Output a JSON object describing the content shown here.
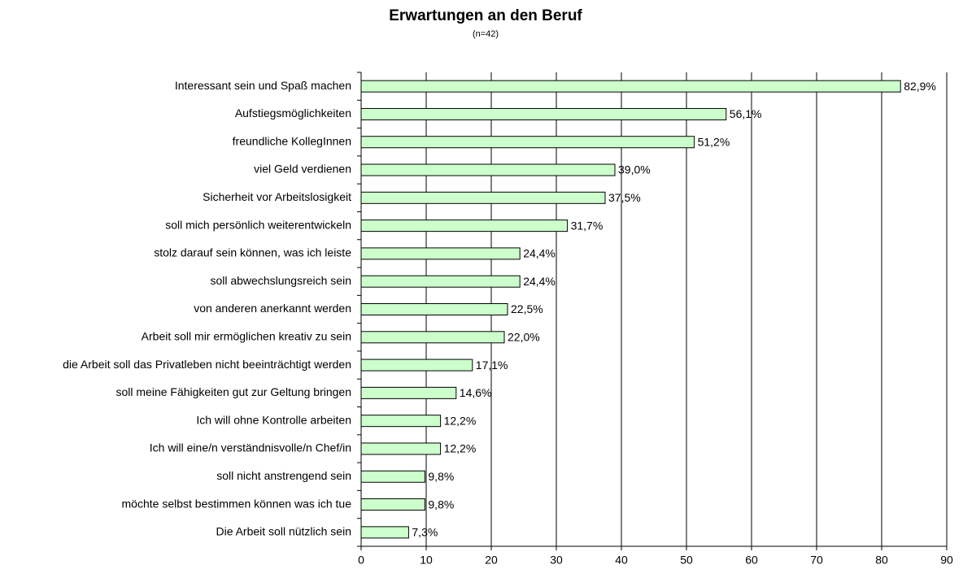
{
  "chart_data": {
    "type": "barh",
    "title": "Erwartungen an den Beruf",
    "subtitle": "(n=42)",
    "categories": [
      "Interessant sein und Spaß machen",
      "Aufstiegsmöglichkeiten",
      "freundliche KollegInnen",
      "viel Geld verdienen",
      "Sicherheit vor Arbeitslosigkeit",
      "soll mich persönlich weiterentwickeln",
      "stolz darauf sein können, was ich leiste",
      "soll abwechslungsreich sein",
      "von anderen anerkannt werden",
      "Arbeit soll mir ermöglichen kreativ zu sein",
      "die Arbeit soll das Privatleben nicht beeinträchtigt werden",
      "soll meine Fähigkeiten gut zur Geltung bringen",
      "Ich will ohne Kontrolle arbeiten",
      "Ich will eine/n verständnisvolle/n Chef/in",
      "soll nicht anstrengend sein",
      "möchte selbst bestimmen können was ich tue",
      "Die Arbeit soll nützlich sein"
    ],
    "values": [
      82.9,
      56.1,
      51.2,
      39.0,
      37.5,
      31.7,
      24.4,
      24.4,
      22.5,
      22.0,
      17.1,
      14.6,
      12.2,
      12.2,
      9.8,
      9.8,
      7.3
    ],
    "value_labels": [
      "82,9%",
      "56,1%",
      "51,2%",
      "39,0%",
      "37,5%",
      "31,7%",
      "24,4%",
      "24,4%",
      "22,5%",
      "22,0%",
      "17,1%",
      "14,6%",
      "12,2%",
      "12,2%",
      "9,8%",
      "9,8%",
      "7,3%"
    ],
    "color": "#ccffcc",
    "xlim": [
      0,
      90
    ],
    "xticks": [
      0,
      10,
      20,
      30,
      40,
      50,
      60,
      70,
      80,
      90
    ],
    "grid": true
  }
}
